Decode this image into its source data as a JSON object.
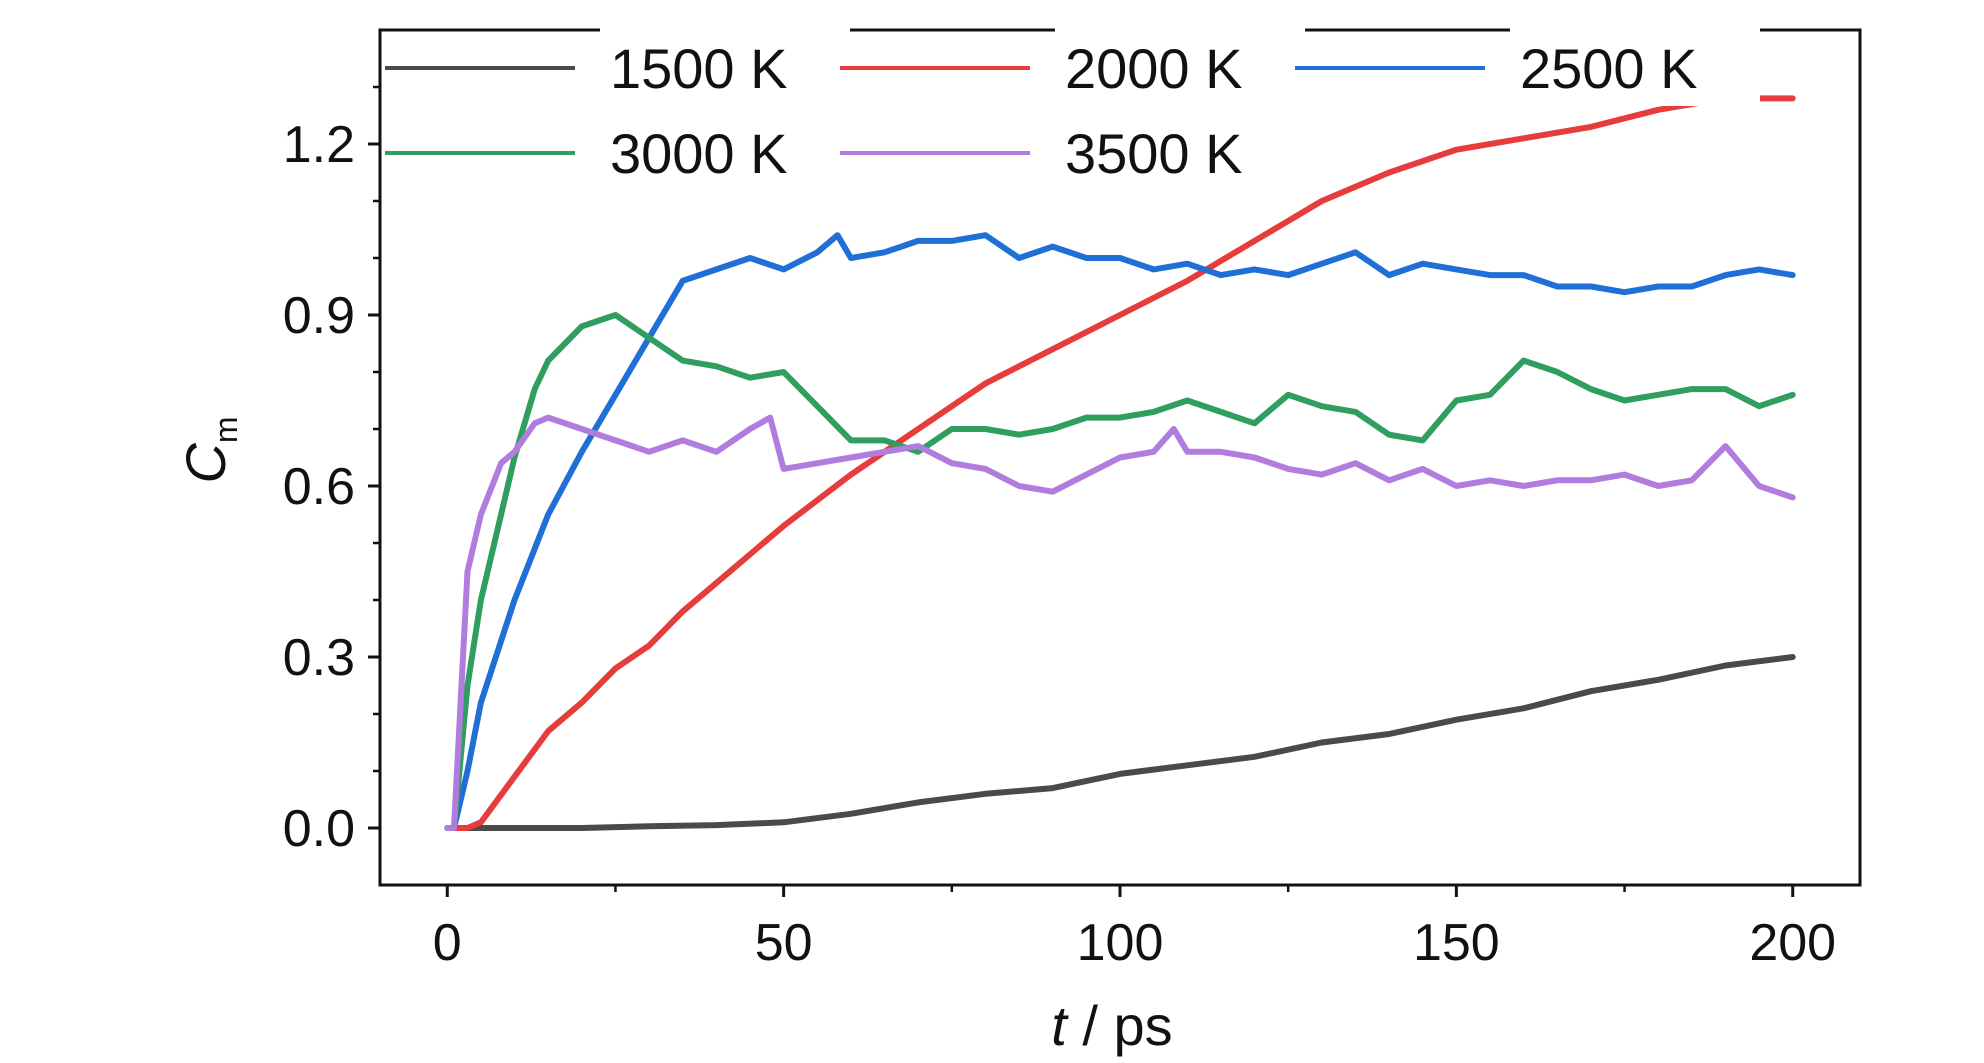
{
  "chart_data": {
    "type": "line",
    "xlabel": "t / ps",
    "ylabel": "C",
    "ylabel_sub": "m",
    "xlim": [
      -10,
      210
    ],
    "ylim": [
      -0.1,
      1.4
    ],
    "xticks": [
      "0",
      "50",
      "100",
      "150",
      "200"
    ],
    "yticks": [
      "0.0",
      "0.3",
      "0.6",
      "0.9",
      "1.2"
    ],
    "grid": false,
    "legend_position": "top",
    "series": [
      {
        "name": "1500 K",
        "color": "#4a4a4a",
        "x": [
          0,
          20,
          30,
          40,
          50,
          60,
          70,
          80,
          90,
          100,
          110,
          120,
          130,
          140,
          150,
          160,
          170,
          180,
          190,
          200
        ],
        "y": [
          0,
          0,
          0.003,
          0.005,
          0.01,
          0.025,
          0.045,
          0.06,
          0.07,
          0.095,
          0.11,
          0.125,
          0.15,
          0.165,
          0.19,
          0.21,
          0.24,
          0.26,
          0.285,
          0.3
        ]
      },
      {
        "name": "2000 K",
        "color": "#e63c3c",
        "x": [
          0,
          3,
          5,
          10,
          15,
          20,
          25,
          30,
          35,
          40,
          50,
          60,
          70,
          80,
          90,
          100,
          110,
          120,
          130,
          140,
          150,
          160,
          170,
          180,
          190,
          200
        ],
        "y": [
          0,
          0,
          0.01,
          0.09,
          0.17,
          0.22,
          0.28,
          0.32,
          0.38,
          0.43,
          0.53,
          0.62,
          0.7,
          0.78,
          0.84,
          0.9,
          0.96,
          1.03,
          1.1,
          1.15,
          1.19,
          1.21,
          1.23,
          1.26,
          1.28,
          1.28
        ]
      },
      {
        "name": "2500 K",
        "color": "#1f6fd6",
        "x": [
          0,
          1,
          3,
          5,
          10,
          15,
          20,
          25,
          30,
          35,
          40,
          45,
          50,
          55,
          58,
          60,
          65,
          70,
          75,
          80,
          85,
          90,
          95,
          100,
          105,
          110,
          115,
          120,
          125,
          130,
          135,
          140,
          145,
          150,
          155,
          160,
          165,
          170,
          175,
          180,
          185,
          190,
          195,
          200
        ],
        "y": [
          0,
          0,
          0.1,
          0.22,
          0.4,
          0.55,
          0.66,
          0.76,
          0.86,
          0.96,
          0.98,
          1.0,
          0.98,
          1.01,
          1.04,
          1.0,
          1.01,
          1.03,
          1.03,
          1.04,
          1.0,
          1.02,
          1.0,
          1.0,
          0.98,
          0.99,
          0.97,
          0.98,
          0.97,
          0.99,
          1.01,
          0.97,
          0.99,
          0.98,
          0.97,
          0.97,
          0.95,
          0.95,
          0.94,
          0.95,
          0.95,
          0.97,
          0.98,
          0.97
        ]
      },
      {
        "name": "3000 K",
        "color": "#2f9e5e",
        "x": [
          0,
          1,
          3,
          5,
          8,
          10,
          13,
          15,
          20,
          25,
          30,
          35,
          40,
          45,
          50,
          55,
          60,
          65,
          70,
          75,
          80,
          85,
          90,
          95,
          100,
          105,
          110,
          115,
          120,
          125,
          130,
          135,
          140,
          145,
          150,
          155,
          160,
          165,
          170,
          175,
          180,
          185,
          190,
          195,
          200
        ],
        "y": [
          0,
          0,
          0.25,
          0.4,
          0.55,
          0.65,
          0.77,
          0.82,
          0.88,
          0.9,
          0.86,
          0.82,
          0.81,
          0.79,
          0.8,
          0.74,
          0.68,
          0.68,
          0.66,
          0.7,
          0.7,
          0.69,
          0.7,
          0.72,
          0.72,
          0.73,
          0.75,
          0.73,
          0.71,
          0.76,
          0.74,
          0.73,
          0.69,
          0.68,
          0.75,
          0.76,
          0.82,
          0.8,
          0.77,
          0.75,
          0.76,
          0.77,
          0.77,
          0.74,
          0.76
        ]
      },
      {
        "name": "3500 K",
        "color": "#b07cde",
        "x": [
          0,
          1,
          3,
          5,
          8,
          10,
          13,
          15,
          20,
          25,
          30,
          35,
          40,
          45,
          48,
          50,
          55,
          60,
          65,
          70,
          75,
          80,
          85,
          90,
          95,
          100,
          105,
          108,
          110,
          115,
          120,
          125,
          130,
          135,
          140,
          145,
          150,
          155,
          160,
          165,
          170,
          175,
          180,
          185,
          190,
          195,
          200
        ],
        "y": [
          0,
          0,
          0.45,
          0.55,
          0.64,
          0.66,
          0.71,
          0.72,
          0.7,
          0.68,
          0.66,
          0.68,
          0.66,
          0.7,
          0.72,
          0.63,
          0.64,
          0.65,
          0.66,
          0.67,
          0.64,
          0.63,
          0.6,
          0.59,
          0.62,
          0.65,
          0.66,
          0.7,
          0.66,
          0.66,
          0.65,
          0.63,
          0.62,
          0.64,
          0.61,
          0.63,
          0.6,
          0.61,
          0.6,
          0.61,
          0.61,
          0.62,
          0.6,
          0.61,
          0.67,
          0.6,
          0.58
        ]
      }
    ]
  }
}
